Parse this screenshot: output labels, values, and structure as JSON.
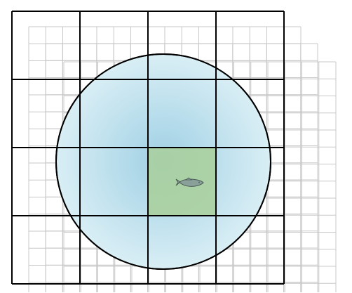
{
  "diagram": {
    "description_visible_text": "",
    "colors": {
      "background": "#ffffff",
      "main_grid_lines": "#000000",
      "offset_grid_lines": "#c8c8c8",
      "circle_fill_center": "#9fd0e4",
      "circle_fill_edge": "#d9eef5",
      "circle_outline": "#000000",
      "highlight_cell": "#a9cf9a",
      "fish_fill": "#8aa09a",
      "fish_outline": "#4a5a55"
    },
    "main_grid": {
      "rows": 4,
      "cols": 4
    },
    "offset_grids": {
      "count": 3
    },
    "highlighted_cell": {
      "row": 2,
      "col": 2
    },
    "icons": [
      "fish-icon"
    ]
  }
}
